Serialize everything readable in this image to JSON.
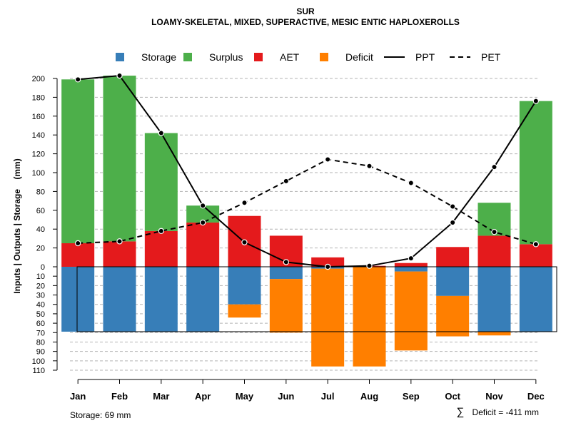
{
  "chart_data": {
    "type": "bar",
    "title": "SUR",
    "subtitle": "LOAMY-SKELETAL, MIXED, SUPERACTIVE, MESIC ENTIC HAPLOXEROLLS",
    "ylabel": "Inputs | Outputs | Storage    (mm)",
    "ylim_upper": [
      0,
      210
    ],
    "ylim_lower": [
      0,
      110
    ],
    "yticks_upper": [
      0,
      20,
      40,
      60,
      80,
      100,
      120,
      140,
      160,
      180,
      200
    ],
    "yticks_lower": [
      10,
      20,
      30,
      40,
      50,
      60,
      70,
      80,
      90,
      100,
      110
    ],
    "categories": [
      "Jan",
      "Feb",
      "Mar",
      "Apr",
      "May",
      "Jun",
      "Jul",
      "Aug",
      "Sep",
      "Oct",
      "Nov",
      "Dec"
    ],
    "series": [
      {
        "name": "AET",
        "color": "#E41A1C",
        "values": [
          25,
          27,
          38,
          47,
          54,
          33,
          10,
          1,
          4,
          21,
          33,
          24
        ]
      },
      {
        "name": "Surplus",
        "color": "#4DAF4A",
        "values": [
          174,
          176,
          104,
          18,
          0,
          0,
          0,
          0,
          0,
          0,
          35,
          152
        ]
      },
      {
        "name": "Storage",
        "color": "#377EB8",
        "values": [
          69,
          69,
          69,
          69,
          40,
          13,
          2,
          0,
          5,
          31,
          69,
          69
        ]
      },
      {
        "name": "Deficit",
        "color": "#FF7F00",
        "values": [
          0,
          0,
          0,
          0,
          14,
          57,
          104,
          106,
          84,
          43,
          4,
          0
        ]
      },
      {
        "name": "PPT",
        "color": "#000000",
        "style": "solid",
        "values": [
          199,
          203,
          142,
          65,
          26,
          5,
          0,
          1,
          9,
          47,
          106,
          176
        ]
      },
      {
        "name": "PET",
        "color": "#000000",
        "style": "dashed",
        "values": [
          25,
          27,
          38,
          47,
          68,
          91,
          114,
          107,
          89,
          64,
          37,
          24
        ]
      }
    ],
    "storage_capacity": 69,
    "legend": [
      {
        "label": "Storage",
        "kind": "box",
        "color": "#377EB8"
      },
      {
        "label": "Surplus",
        "kind": "box",
        "color": "#4DAF4A"
      },
      {
        "label": "AET",
        "kind": "box",
        "color": "#E41A1C"
      },
      {
        "label": "Deficit",
        "kind": "box",
        "color": "#FF7F00"
      },
      {
        "label": "PPT",
        "kind": "line",
        "color": "#000000"
      },
      {
        "label": "PET",
        "kind": "dash",
        "color": "#000000"
      }
    ],
    "legend_position": "top",
    "grid": true,
    "footnote_left": "Storage: 69 mm",
    "footnote_right_symbol": "∑",
    "footnote_right": "Deficit = -411 mm"
  }
}
